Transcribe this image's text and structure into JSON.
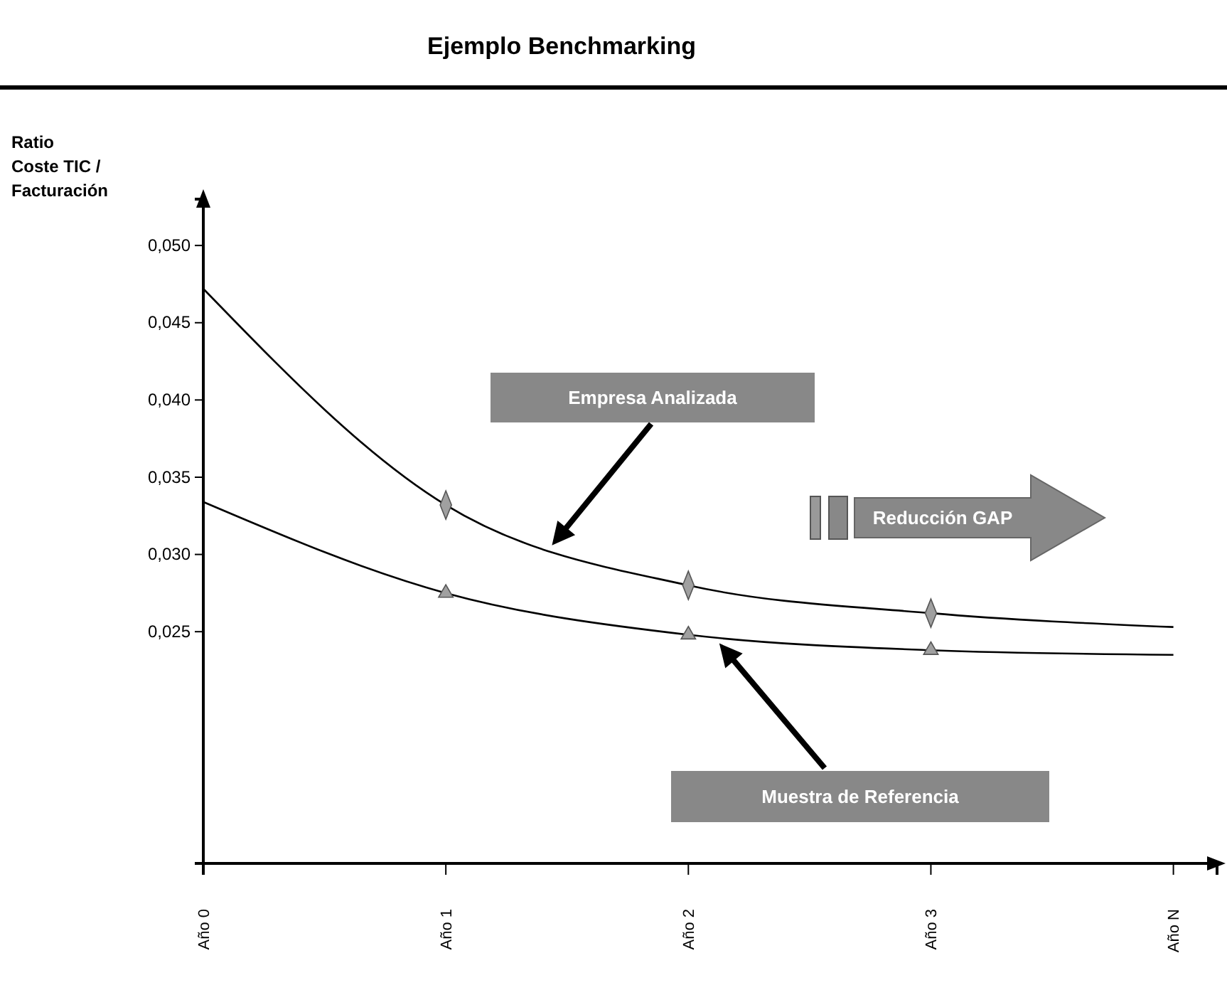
{
  "chart_data": {
    "type": "line",
    "title": "Ejemplo Benchmarking",
    "ylabel": "Ratio\nCoste TIC /\nFacturación",
    "categories": [
      "Año 0",
      "Año 1",
      "Año 2",
      "Año 3",
      "Año N"
    ],
    "ylim": [
      0.01,
      0.053
    ],
    "yticks": [
      {
        "value": 0.025,
        "label": "0,025"
      },
      {
        "value": 0.03,
        "label": "0,030"
      },
      {
        "value": 0.035,
        "label": "0,035"
      },
      {
        "value": 0.04,
        "label": "0,040"
      },
      {
        "value": 0.045,
        "label": "0,045"
      },
      {
        "value": 0.05,
        "label": "0,050"
      }
    ],
    "line_style": "solid",
    "series": [
      {
        "marker": "none",
        "color": "#000000",
        "values": [
          0.0472,
          0.0332,
          0.028,
          0.0262,
          0.0253
        ]
      },
      {
        "marker": "none",
        "color": "#000000",
        "values": [
          0.0334,
          0.0275,
          0.0248,
          0.0238,
          0.0235
        ]
      },
      {
        "type": "scatter",
        "marker": "diamond",
        "color": "#a0a0a0",
        "x": [
          "Año 1",
          "Año 2",
          "Año 3"
        ],
        "values": [
          0.0332,
          0.028,
          0.0262
        ]
      },
      {
        "type": "scatter",
        "marker": "triangle",
        "color": "#a0a0a0",
        "x": [
          "Año 1",
          "Año 2",
          "Año 3"
        ],
        "values": [
          0.0275,
          0.0248,
          0.0238
        ]
      }
    ],
    "annotations": [
      "Empresa Analizada",
      "Muestra de Referencia",
      "Reducción GAP"
    ]
  }
}
